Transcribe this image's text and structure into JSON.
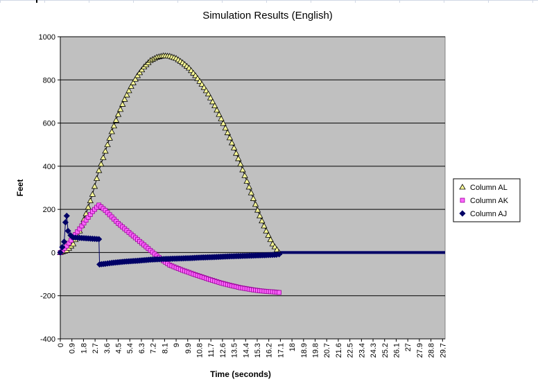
{
  "chart_data": {
    "type": "line",
    "title": "Simulation Results (English)",
    "xlabel": "Time (seconds)",
    "ylabel": "Feet",
    "ylim": [
      -400,
      1000
    ],
    "yticks": [
      -400,
      -200,
      0,
      200,
      400,
      600,
      800,
      1000
    ],
    "xlim": [
      0,
      29.9
    ],
    "xticks": [
      "0",
      "0.9",
      "1.8",
      "2.7",
      "3.6",
      "4.5",
      "5.4",
      "6.3",
      "7.2",
      "8.1",
      "9",
      "9.9",
      "10.8",
      "11.7",
      "12.6",
      "13.5",
      "14.4",
      "15.3",
      "16.2",
      "17.1",
      "18",
      "18.9",
      "19.8",
      "20.7",
      "21.6",
      "22.5",
      "23.4",
      "24.3",
      "25.2",
      "26.1",
      "27",
      "27.9",
      "28.8",
      "29.7"
    ],
    "grid": "horizontal",
    "plot_background": "#c0c0c0",
    "legend_position": "right",
    "series": [
      {
        "name": "Column AL",
        "marker": "triangle",
        "color": "#ffff99",
        "stroke": "#000000",
        "x": [
          0,
          0.5,
          1.0,
          1.5,
          2.0,
          2.5,
          3.0,
          3.5,
          4.0,
          4.5,
          5.0,
          5.5,
          6.0,
          6.5,
          7.0,
          7.5,
          8.0,
          8.5,
          9.0,
          9.5,
          10.0,
          10.5,
          11.0,
          11.5,
          12.0,
          12.5,
          13.0,
          13.5,
          14.0,
          14.5,
          15.0,
          15.5,
          16.0,
          16.5,
          17.0
        ],
        "y": [
          0,
          10,
          40,
          100,
          180,
          270,
          380,
          470,
          560,
          640,
          710,
          770,
          820,
          860,
          890,
          905,
          912,
          910,
          900,
          880,
          855,
          820,
          780,
          735,
          680,
          620,
          555,
          485,
          410,
          330,
          250,
          170,
          100,
          40,
          0
        ]
      },
      {
        "name": "Column AK",
        "marker": "square",
        "color": "#ff66ff",
        "stroke": "#990099",
        "x": [
          0,
          0.5,
          1.0,
          1.5,
          2.0,
          2.5,
          3.0,
          3.5,
          4.0,
          4.5,
          5.0,
          5.5,
          6.0,
          6.5,
          7.0,
          7.5,
          8.0,
          8.5,
          9.0,
          9.5,
          10.0,
          10.5,
          11.0,
          11.5,
          12.0,
          12.5,
          13.0,
          13.5,
          14.0,
          14.5,
          15.0,
          15.5,
          16.0,
          16.5,
          17.0
        ],
        "y": [
          0,
          30,
          70,
          110,
          150,
          190,
          220,
          195,
          165,
          135,
          110,
          85,
          60,
          35,
          10,
          -15,
          -38,
          -58,
          -70,
          -82,
          -92,
          -103,
          -113,
          -123,
          -132,
          -141,
          -149,
          -156,
          -163,
          -168,
          -173,
          -177,
          -180,
          -182,
          -185
        ]
      },
      {
        "name": "Column AJ",
        "marker": "diamond",
        "color": "#000066",
        "stroke": "#000066",
        "x": [
          0,
          0.3,
          0.4,
          0.5,
          0.6,
          0.8,
          1.0,
          1.5,
          2.0,
          2.5,
          3.0,
          3.05,
          3.5,
          4.0,
          5.0,
          6.0,
          7.0,
          8.0,
          9.0,
          10.0,
          11.0,
          12.0,
          13.0,
          14.0,
          15.0,
          16.0,
          16.8,
          17.0
        ],
        "y": [
          0,
          50,
          140,
          170,
          100,
          80,
          70,
          68,
          66,
          64,
          62,
          -55,
          -52,
          -48,
          -42,
          -38,
          -33,
          -30,
          -28,
          -26,
          -23,
          -21,
          -18,
          -16,
          -14,
          -12,
          -10,
          -8
        ]
      }
    ],
    "zero_tail": {
      "from": 17.0,
      "to": 29.9,
      "value": 0
    }
  }
}
